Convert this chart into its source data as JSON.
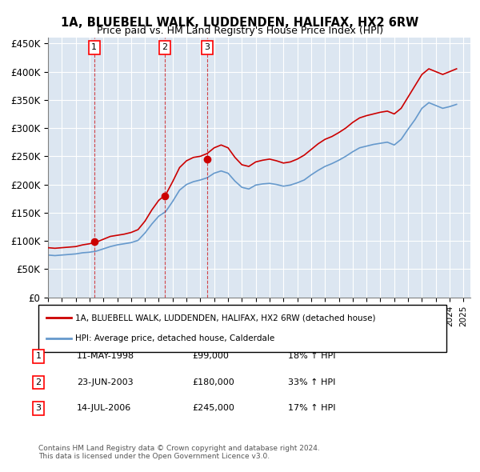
{
  "title1": "1A, BLUEBELL WALK, LUDDENDEN, HALIFAX, HX2 6RW",
  "title2": "Price paid vs. HM Land Registry's House Price Index (HPI)",
  "ylim": [
    0,
    460000
  ],
  "yticks": [
    0,
    50000,
    100000,
    150000,
    200000,
    250000,
    300000,
    350000,
    400000,
    450000
  ],
  "ytick_labels": [
    "£0",
    "£50K",
    "£100K",
    "£150K",
    "£200K",
    "£250K",
    "£300K",
    "£350K",
    "£400K",
    "£450K"
  ],
  "background_color": "#dce6f1",
  "plot_bg": "#dce6f1",
  "red_line_color": "#cc0000",
  "blue_line_color": "#6699cc",
  "sale_dates": [
    "1998-05-11",
    "2003-06-23",
    "2006-07-14"
  ],
  "sale_prices": [
    99000,
    180000,
    245000
  ],
  "sale_labels": [
    "1",
    "2",
    "3"
  ],
  "legend_line1": "1A, BLUEBELL WALK, LUDDENDEN, HALIFAX, HX2 6RW (detached house)",
  "legend_line2": "HPI: Average price, detached house, Calderdale",
  "table_data": [
    [
      "1",
      "11-MAY-1998",
      "£99,000",
      "18% ↑ HPI"
    ],
    [
      "2",
      "23-JUN-2003",
      "£180,000",
      "33% ↑ HPI"
    ],
    [
      "3",
      "14-JUL-2006",
      "£245,000",
      "17% ↑ HPI"
    ]
  ],
  "footer": "Contains HM Land Registry data © Crown copyright and database right 2024.\nThis data is licensed under the Open Government Licence v3.0.",
  "red_hpi_data": {
    "years": [
      1995,
      1995.5,
      1996,
      1996.5,
      1997,
      1997.5,
      1998,
      1998.5,
      1999,
      1999.5,
      2000,
      2000.5,
      2001,
      2001.5,
      2002,
      2002.5,
      2003,
      2003.5,
      2004,
      2004.5,
      2005,
      2005.5,
      2006,
      2006.5,
      2007,
      2007.5,
      2008,
      2008.5,
      2009,
      2009.5,
      2010,
      2010.5,
      2011,
      2011.5,
      2012,
      2012.5,
      2013,
      2013.5,
      2014,
      2014.5,
      2015,
      2015.5,
      2016,
      2016.5,
      2017,
      2017.5,
      2018,
      2018.5,
      2019,
      2019.5,
      2020,
      2020.5,
      2021,
      2021.5,
      2022,
      2022.5,
      2023,
      2023.5,
      2024,
      2024.5
    ],
    "values": [
      88000,
      87000,
      88000,
      89000,
      90000,
      93000,
      95000,
      98000,
      103000,
      108000,
      110000,
      112000,
      115000,
      120000,
      135000,
      155000,
      172000,
      182000,
      205000,
      230000,
      242000,
      248000,
      250000,
      255000,
      265000,
      270000,
      265000,
      248000,
      235000,
      232000,
      240000,
      243000,
      245000,
      242000,
      238000,
      240000,
      245000,
      252000,
      262000,
      272000,
      280000,
      285000,
      292000,
      300000,
      310000,
      318000,
      322000,
      325000,
      328000,
      330000,
      325000,
      335000,
      355000,
      375000,
      395000,
      405000,
      400000,
      395000,
      400000,
      405000
    ]
  },
  "blue_hpi_data": {
    "years": [
      1995,
      1995.5,
      1996,
      1996.5,
      1997,
      1997.5,
      1998,
      1998.5,
      1999,
      1999.5,
      2000,
      2000.5,
      2001,
      2001.5,
      2002,
      2002.5,
      2003,
      2003.5,
      2004,
      2004.5,
      2005,
      2005.5,
      2006,
      2006.5,
      2007,
      2007.5,
      2008,
      2008.5,
      2009,
      2009.5,
      2010,
      2010.5,
      2011,
      2011.5,
      2012,
      2012.5,
      2013,
      2013.5,
      2014,
      2014.5,
      2015,
      2015.5,
      2016,
      2016.5,
      2017,
      2017.5,
      2018,
      2018.5,
      2019,
      2019.5,
      2020,
      2020.5,
      2021,
      2021.5,
      2022,
      2022.5,
      2023,
      2023.5,
      2024,
      2024.5
    ],
    "values": [
      75000,
      74000,
      75000,
      76000,
      77000,
      79000,
      80000,
      82000,
      86000,
      90000,
      93000,
      95000,
      97000,
      101000,
      114000,
      130000,
      144000,
      152000,
      170000,
      190000,
      200000,
      205000,
      208000,
      212000,
      220000,
      224000,
      220000,
      206000,
      195000,
      192000,
      199000,
      201000,
      202000,
      200000,
      197000,
      199000,
      203000,
      208000,
      217000,
      225000,
      232000,
      237000,
      243000,
      250000,
      258000,
      265000,
      268000,
      271000,
      273000,
      275000,
      270000,
      280000,
      298000,
      315000,
      335000,
      345000,
      340000,
      335000,
      338000,
      342000
    ]
  }
}
